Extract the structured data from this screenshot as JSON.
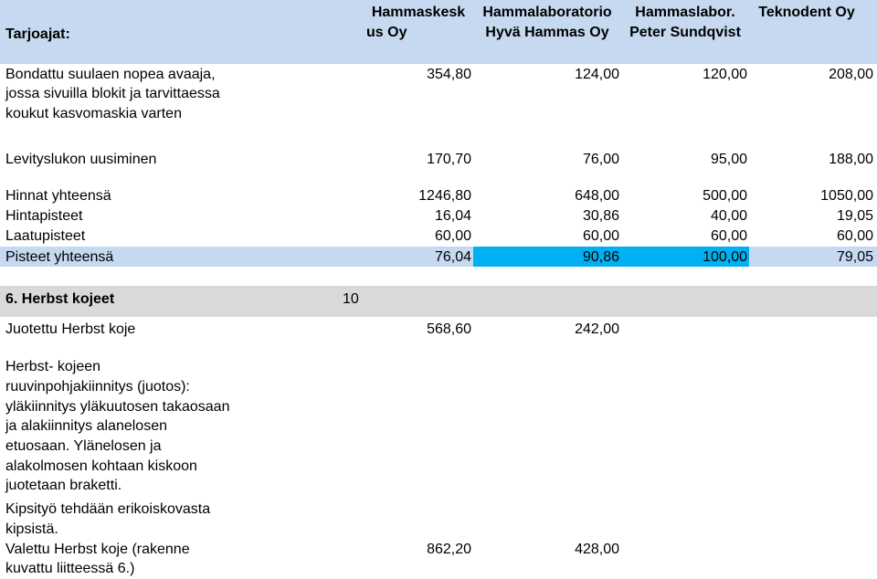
{
  "header": {
    "label": "Tarjoajat:",
    "suppliers": [
      {
        "line1": "Hammaskesk",
        "line2": "us Oy"
      },
      {
        "line1": "Hammalaboratorio",
        "line2": "Hyvä Hammas Oy"
      },
      {
        "line1": "Hammaslabor.",
        "line2": "Peter Sundqvist"
      },
      {
        "line1": "Teknodent Oy",
        "line2": ""
      }
    ]
  },
  "section1": {
    "item1": {
      "desc": [
        "Bondattu suulaen nopea avaaja,",
        "jossa sivuilla blokit ja tarvittaessa",
        "koukut kasvomaskia varten"
      ],
      "values": [
        "354,80",
        "124,00",
        "120,00",
        "208,00"
      ]
    },
    "item2": {
      "desc": "Levityslukon uusiminen",
      "values": [
        "170,70",
        "76,00",
        "95,00",
        "188,00"
      ]
    },
    "totals": [
      {
        "label": "Hinnat yhteensä",
        "values": [
          "1246,80",
          "648,00",
          "500,00",
          "1050,00"
        ]
      },
      {
        "label": "Hintapisteet",
        "values": [
          "16,04",
          "30,86",
          "40,00",
          "19,05"
        ]
      },
      {
        "label": "Laatupisteet",
        "values": [
          "60,00",
          "60,00",
          "60,00",
          "60,00"
        ]
      },
      {
        "label": "Pisteet yhteensä",
        "values": [
          "76,04",
          "90,86",
          "100,00",
          "79,05"
        ]
      }
    ]
  },
  "section6": {
    "title": "6. Herbst kojeet",
    "weight": "10",
    "item1": {
      "desc": "Juotettu Herbst koje",
      "values": [
        "568,60",
        "242,00"
      ]
    },
    "item2": {
      "desc": [
        "Herbst- kojeen",
        "ruuvinpohjakiinnitys (juotos):",
        "yläkiinnitys yläkuutosen takaosaan",
        "ja alakiinnitys alanelosen",
        "etuosaan. Ylänelosen ja",
        "alakolmosen kohtaan kiskoon",
        "juotetaan braketti."
      ]
    },
    "item3": {
      "desc": [
        "Kipsityö tehdään erikoiskovasta",
        "kipsistä.",
        "Valettu Herbst koje (rakenne",
        "kuvattu liitteessä 6.)"
      ],
      "values": [
        "862,20",
        "428,00"
      ]
    }
  },
  "colors": {
    "header_bg": "#c6d9f1",
    "section_bg": "#d9d9d9",
    "highlight": "#00b0f0",
    "row_bg": "#c6d9f1"
  }
}
